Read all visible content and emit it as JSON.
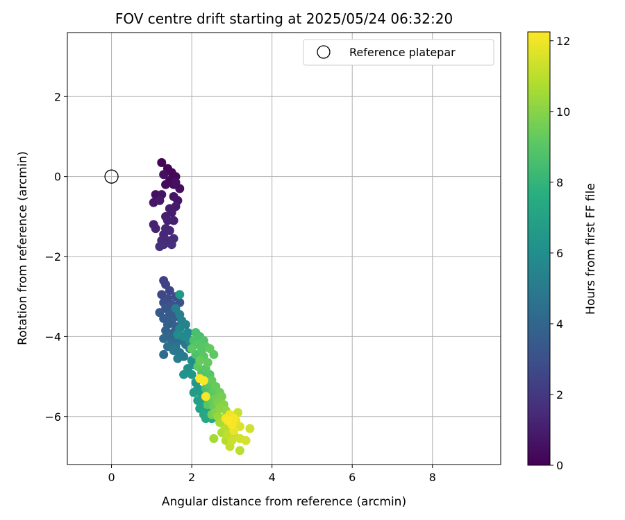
{
  "chart_data": {
    "type": "scatter",
    "title": "FOV centre drift starting at 2025/05/24 06:32:20",
    "xlabel": "Angular distance from reference (arcmin)",
    "ylabel": "Rotation from reference (arcmin)",
    "xlim": [
      -1.1,
      9.7
    ],
    "ylim": [
      -7.2,
      3.6
    ],
    "x_ticks": [
      0,
      2,
      4,
      6,
      8
    ],
    "y_ticks": [
      2,
      0,
      -2,
      -4,
      -6
    ],
    "grid": true,
    "legend_position": "top-right",
    "reference": {
      "name": "Reference platepar",
      "x": 0,
      "y": 0,
      "marker": "open-circle"
    },
    "colorbar": {
      "label": "Hours from first FF file",
      "range": [
        0,
        12.25
      ],
      "ticks": [
        0,
        2,
        4,
        6,
        8,
        10,
        12
      ],
      "colormap": "viridis"
    },
    "points": [
      {
        "x": 1.25,
        "y": 0.35,
        "t": 0.1
      },
      {
        "x": 1.4,
        "y": 0.2,
        "t": 0.15
      },
      {
        "x": 1.5,
        "y": 0.1,
        "t": 0.2
      },
      {
        "x": 1.6,
        "y": 0.0,
        "t": 0.25
      },
      {
        "x": 1.45,
        "y": -0.1,
        "t": 0.3
      },
      {
        "x": 1.55,
        "y": -0.2,
        "t": 0.35
      },
      {
        "x": 1.35,
        "y": -0.2,
        "t": 0.4
      },
      {
        "x": 1.7,
        "y": -0.3,
        "t": 0.45
      },
      {
        "x": 1.3,
        "y": 0.05,
        "t": 0.5
      },
      {
        "x": 1.6,
        "y": -0.15,
        "t": 0.55
      },
      {
        "x": 1.1,
        "y": -0.45,
        "t": 0.6
      },
      {
        "x": 1.25,
        "y": -0.45,
        "t": 0.65
      },
      {
        "x": 1.55,
        "y": -0.5,
        "t": 0.7
      },
      {
        "x": 1.65,
        "y": -0.6,
        "t": 0.75
      },
      {
        "x": 1.05,
        "y": -0.65,
        "t": 0.8
      },
      {
        "x": 1.2,
        "y": -0.6,
        "t": 0.85
      },
      {
        "x": 1.6,
        "y": -0.75,
        "t": 0.9
      },
      {
        "x": 1.45,
        "y": -0.8,
        "t": 0.95
      },
      {
        "x": 1.5,
        "y": -0.9,
        "t": 1.0
      },
      {
        "x": 1.35,
        "y": -1.0,
        "t": 1.05
      },
      {
        "x": 1.55,
        "y": -1.1,
        "t": 1.1
      },
      {
        "x": 1.4,
        "y": -1.1,
        "t": 1.15
      },
      {
        "x": 1.05,
        "y": -1.2,
        "t": 1.2
      },
      {
        "x": 1.1,
        "y": -1.3,
        "t": 1.25
      },
      {
        "x": 1.35,
        "y": -1.3,
        "t": 1.3
      },
      {
        "x": 1.45,
        "y": -1.35,
        "t": 1.35
      },
      {
        "x": 1.3,
        "y": -1.45,
        "t": 1.4
      },
      {
        "x": 1.25,
        "y": -1.6,
        "t": 1.45
      },
      {
        "x": 1.4,
        "y": -1.6,
        "t": 1.5
      },
      {
        "x": 1.55,
        "y": -1.55,
        "t": 1.55
      },
      {
        "x": 1.3,
        "y": -1.7,
        "t": 1.6
      },
      {
        "x": 1.5,
        "y": -1.7,
        "t": 1.65
      },
      {
        "x": 1.2,
        "y": -1.75,
        "t": 1.7
      },
      {
        "x": 1.3,
        "y": -2.6,
        "t": 2.4
      },
      {
        "x": 1.35,
        "y": -2.7,
        "t": 2.5
      },
      {
        "x": 1.45,
        "y": -2.85,
        "t": 2.6
      },
      {
        "x": 1.25,
        "y": -2.95,
        "t": 2.7
      },
      {
        "x": 1.4,
        "y": -3.05,
        "t": 2.8
      },
      {
        "x": 1.6,
        "y": -3.0,
        "t": 2.9
      },
      {
        "x": 1.3,
        "y": -3.15,
        "t": 3.0
      },
      {
        "x": 1.5,
        "y": -3.2,
        "t": 3.1
      },
      {
        "x": 1.7,
        "y": -3.15,
        "t": 3.2
      },
      {
        "x": 1.35,
        "y": -3.3,
        "t": 3.3
      },
      {
        "x": 1.55,
        "y": -3.35,
        "t": 3.4
      },
      {
        "x": 1.2,
        "y": -3.4,
        "t": 3.5
      },
      {
        "x": 1.45,
        "y": -3.45,
        "t": 3.55
      },
      {
        "x": 1.65,
        "y": -3.5,
        "t": 3.6
      },
      {
        "x": 1.3,
        "y": -3.55,
        "t": 3.65
      },
      {
        "x": 1.5,
        "y": -3.6,
        "t": 3.7
      },
      {
        "x": 1.4,
        "y": -3.7,
        "t": 3.75
      },
      {
        "x": 1.6,
        "y": -3.75,
        "t": 3.8
      },
      {
        "x": 1.35,
        "y": -3.85,
        "t": 3.9
      },
      {
        "x": 1.55,
        "y": -3.9,
        "t": 4.0
      },
      {
        "x": 1.45,
        "y": -4.0,
        "t": 4.1
      },
      {
        "x": 1.3,
        "y": -4.05,
        "t": 4.2
      },
      {
        "x": 1.65,
        "y": -4.05,
        "t": 4.3
      },
      {
        "x": 1.5,
        "y": -4.15,
        "t": 4.4
      },
      {
        "x": 1.75,
        "y": -4.1,
        "t": 4.5
      },
      {
        "x": 1.4,
        "y": -4.25,
        "t": 4.6
      },
      {
        "x": 1.6,
        "y": -4.25,
        "t": 4.7
      },
      {
        "x": 1.85,
        "y": -4.2,
        "t": 4.8
      },
      {
        "x": 1.55,
        "y": -4.35,
        "t": 4.9
      },
      {
        "x": 1.7,
        "y": -4.4,
        "t": 5.0
      },
      {
        "x": 1.95,
        "y": -4.3,
        "t": 5.05
      },
      {
        "x": 1.3,
        "y": -4.45,
        "t": 4.3
      },
      {
        "x": 1.8,
        "y": -4.5,
        "t": 5.1
      },
      {
        "x": 1.65,
        "y": -4.55,
        "t": 5.15
      },
      {
        "x": 1.6,
        "y": -3.3,
        "t": 5.2
      },
      {
        "x": 1.7,
        "y": -3.45,
        "t": 5.3
      },
      {
        "x": 1.75,
        "y": -3.6,
        "t": 5.4
      },
      {
        "x": 1.85,
        "y": -3.7,
        "t": 5.5
      },
      {
        "x": 1.7,
        "y": -3.8,
        "t": 5.6
      },
      {
        "x": 1.9,
        "y": -3.9,
        "t": 5.7
      },
      {
        "x": 1.8,
        "y": -4.0,
        "t": 5.8
      },
      {
        "x": 1.95,
        "y": -4.1,
        "t": 5.9
      },
      {
        "x": 1.65,
        "y": -3.95,
        "t": 5.95
      },
      {
        "x": 1.7,
        "y": -2.95,
        "t": 6.6
      },
      {
        "x": 2.0,
        "y": -4.6,
        "t": 6.0
      },
      {
        "x": 2.05,
        "y": -4.7,
        "t": 6.1
      },
      {
        "x": 1.9,
        "y": -4.8,
        "t": 6.2
      },
      {
        "x": 1.8,
        "y": -4.95,
        "t": 6.3
      },
      {
        "x": 2.0,
        "y": -4.95,
        "t": 6.4
      },
      {
        "x": 2.1,
        "y": -5.15,
        "t": 6.5
      },
      {
        "x": 2.15,
        "y": -5.3,
        "t": 6.6
      },
      {
        "x": 2.05,
        "y": -5.4,
        "t": 6.7
      },
      {
        "x": 2.25,
        "y": -5.45,
        "t": 6.8
      },
      {
        "x": 2.15,
        "y": -5.6,
        "t": 6.9
      },
      {
        "x": 2.3,
        "y": -5.65,
        "t": 7.0
      },
      {
        "x": 2.2,
        "y": -5.8,
        "t": 7.1
      },
      {
        "x": 2.4,
        "y": -5.85,
        "t": 7.2
      },
      {
        "x": 2.3,
        "y": -5.95,
        "t": 7.3
      },
      {
        "x": 2.35,
        "y": -6.05,
        "t": 7.4
      },
      {
        "x": 2.5,
        "y": -6.05,
        "t": 7.5
      },
      {
        "x": 2.1,
        "y": -3.9,
        "t": 8.6
      },
      {
        "x": 2.2,
        "y": -4.0,
        "t": 8.7
      },
      {
        "x": 2.05,
        "y": -4.1,
        "t": 8.8
      },
      {
        "x": 2.3,
        "y": -4.1,
        "t": 8.9
      },
      {
        "x": 2.15,
        "y": -4.2,
        "t": 9.0
      },
      {
        "x": 2.35,
        "y": -4.25,
        "t": 9.1
      },
      {
        "x": 2.0,
        "y": -4.3,
        "t": 9.2
      },
      {
        "x": 2.25,
        "y": -4.35,
        "t": 9.0
      },
      {
        "x": 2.45,
        "y": -4.3,
        "t": 9.3
      },
      {
        "x": 2.1,
        "y": -4.45,
        "t": 8.8
      },
      {
        "x": 2.3,
        "y": -4.5,
        "t": 9.1
      },
      {
        "x": 2.55,
        "y": -4.45,
        "t": 9.2
      },
      {
        "x": 2.2,
        "y": -4.6,
        "t": 9.4
      },
      {
        "x": 2.4,
        "y": -4.65,
        "t": 9.3
      },
      {
        "x": 2.15,
        "y": -4.75,
        "t": 9.2
      },
      {
        "x": 2.35,
        "y": -4.8,
        "t": 9.1
      },
      {
        "x": 2.25,
        "y": -4.9,
        "t": 8.9
      },
      {
        "x": 2.45,
        "y": -4.95,
        "t": 9.0
      },
      {
        "x": 2.3,
        "y": -5.05,
        "t": 8.8
      },
      {
        "x": 2.5,
        "y": -5.1,
        "t": 9.3
      },
      {
        "x": 2.4,
        "y": -5.2,
        "t": 9.0
      },
      {
        "x": 2.6,
        "y": -5.25,
        "t": 9.4
      },
      {
        "x": 2.35,
        "y": -5.3,
        "t": 8.7
      },
      {
        "x": 2.55,
        "y": -5.35,
        "t": 9.2
      },
      {
        "x": 2.7,
        "y": -5.4,
        "t": 9.5
      },
      {
        "x": 2.45,
        "y": -5.45,
        "t": 9.0
      },
      {
        "x": 2.6,
        "y": -5.55,
        "t": 9.6
      },
      {
        "x": 2.75,
        "y": -5.5,
        "t": 9.7
      },
      {
        "x": 2.5,
        "y": -5.6,
        "t": 9.3
      },
      {
        "x": 2.65,
        "y": -5.65,
        "t": 9.8
      },
      {
        "x": 2.4,
        "y": -5.7,
        "t": 9.1
      },
      {
        "x": 2.8,
        "y": -5.7,
        "t": 10.0
      },
      {
        "x": 2.55,
        "y": -5.75,
        "t": 9.5
      },
      {
        "x": 2.7,
        "y": -5.8,
        "t": 10.1
      },
      {
        "x": 2.6,
        "y": -5.9,
        "t": 9.9
      },
      {
        "x": 2.85,
        "y": -5.85,
        "t": 10.2
      },
      {
        "x": 2.65,
        "y": -6.0,
        "t": 10.3
      },
      {
        "x": 2.5,
        "y": -5.95,
        "t": 9.7
      },
      {
        "x": 2.75,
        "y": -6.05,
        "t": 10.4
      },
      {
        "x": 2.9,
        "y": -6.0,
        "t": 10.5
      },
      {
        "x": 2.7,
        "y": -6.15,
        "t": 10.6
      },
      {
        "x": 2.8,
        "y": -6.2,
        "t": 10.7
      },
      {
        "x": 2.95,
        "y": -6.15,
        "t": 10.8
      },
      {
        "x": 2.85,
        "y": -6.3,
        "t": 10.9
      },
      {
        "x": 3.0,
        "y": -6.3,
        "t": 11.0
      },
      {
        "x": 2.75,
        "y": -6.4,
        "t": 10.8
      },
      {
        "x": 2.9,
        "y": -6.45,
        "t": 11.1
      },
      {
        "x": 3.05,
        "y": -6.45,
        "t": 11.2
      },
      {
        "x": 2.85,
        "y": -6.6,
        "t": 10.9
      },
      {
        "x": 3.0,
        "y": -6.6,
        "t": 11.3
      },
      {
        "x": 2.55,
        "y": -6.55,
        "t": 10.6
      },
      {
        "x": 3.2,
        "y": -6.55,
        "t": 11.4
      },
      {
        "x": 3.35,
        "y": -6.6,
        "t": 11.5
      },
      {
        "x": 3.45,
        "y": -6.3,
        "t": 11.4
      },
      {
        "x": 3.2,
        "y": -6.85,
        "t": 11.0
      },
      {
        "x": 2.95,
        "y": -6.75,
        "t": 11.2
      },
      {
        "x": 3.15,
        "y": -5.9,
        "t": 11.3
      },
      {
        "x": 3.1,
        "y": -6.1,
        "t": 11.8
      },
      {
        "x": 3.2,
        "y": -6.25,
        "t": 11.6
      },
      {
        "x": 2.95,
        "y": -5.95,
        "t": 12.0
      },
      {
        "x": 3.05,
        "y": -6.05,
        "t": 12.1
      },
      {
        "x": 2.9,
        "y": -6.1,
        "t": 12.2
      },
      {
        "x": 3.0,
        "y": -6.2,
        "t": 12.15
      },
      {
        "x": 2.85,
        "y": -6.05,
        "t": 12.1
      },
      {
        "x": 3.05,
        "y": -6.35,
        "t": 11.9
      },
      {
        "x": 2.2,
        "y": -5.05,
        "t": 12.2
      },
      {
        "x": 2.3,
        "y": -5.1,
        "t": 12.2
      },
      {
        "x": 2.35,
        "y": -5.5,
        "t": 12.1
      }
    ]
  }
}
